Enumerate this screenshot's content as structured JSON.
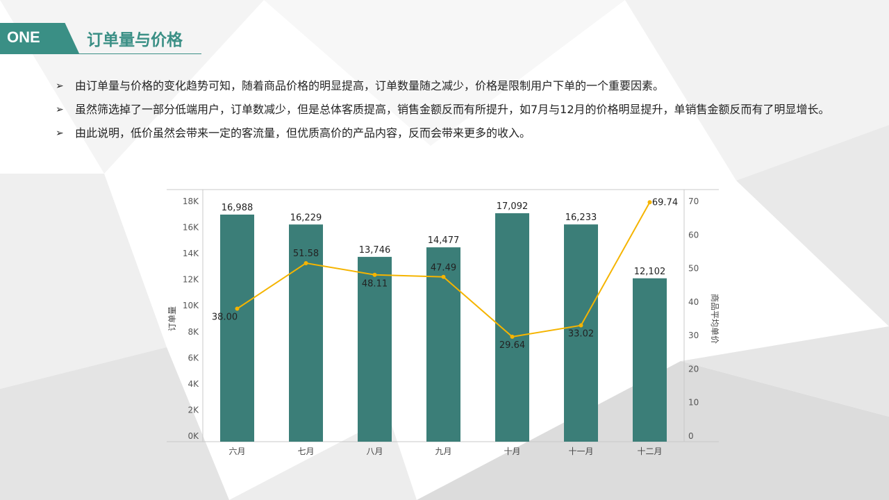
{
  "header": {
    "tag": "ONE",
    "title": "订单量与价格"
  },
  "bullets": [
    "由订单量与价格的变化趋势可知，随着商品价格的明显提高，订单数量随之减少，价格是限制用户下单的一个重要因素。",
    "虽然筛选掉了一部分低端用户，订单数减少，但是总体客质提高，销售金额反而有所提升，如7月与12月的价格明显提升，单销售金额反而有了明显增长。",
    "由此说明，低价虽然会带来一定的客流量，但优质高价的产品内容，反而会带来更多的收入。"
  ],
  "colors": {
    "accent": "#3a8f85",
    "bar": "#3b7e78",
    "line": "#f5b400"
  },
  "chart_data": {
    "type": "bar",
    "categories": [
      "六月",
      "七月",
      "八月",
      "九月",
      "十月",
      "十一月",
      "十二月"
    ],
    "series": [
      {
        "name": "订单量",
        "type": "bar",
        "axis": "left",
        "values": [
          16988,
          16229,
          13746,
          14477,
          17092,
          16233,
          12102
        ],
        "labels": [
          "16,988",
          "16,229",
          "13,746",
          "14,477",
          "17,092",
          "16,233",
          "12,102"
        ]
      },
      {
        "name": "商品平均单价",
        "type": "line",
        "axis": "right",
        "values": [
          38.0,
          51.58,
          48.11,
          47.49,
          29.64,
          33.02,
          69.74
        ],
        "labels": [
          "38.00",
          "51.58",
          "48.11",
          "47.49",
          "29.64",
          "33.02",
          "69.74"
        ]
      }
    ],
    "ylabel": "订单量",
    "y2label": "商品平均单价",
    "ylim": [
      0,
      18000
    ],
    "y2lim": [
      0,
      70
    ],
    "yticks": [
      "0K",
      "2K",
      "4K",
      "6K",
      "8K",
      "10K",
      "12K",
      "14K",
      "16K",
      "18K"
    ],
    "y2ticks": [
      "0",
      "10",
      "20",
      "30",
      "40",
      "50",
      "60",
      "70"
    ]
  }
}
